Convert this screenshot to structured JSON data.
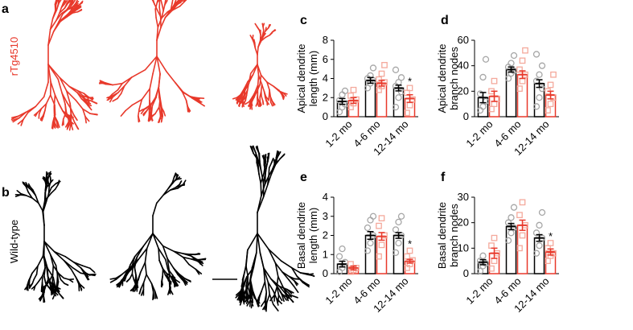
{
  "panel_labels": [
    "a",
    "b"
  ],
  "group_labels": [
    "rTg4510",
    "Wild-type"
  ],
  "chart_data": [
    {
      "type": "bar",
      "panel_label": "c",
      "y_label": [
        "Apical dendrite",
        "length (mm)"
      ],
      "categories": [
        "1-2 mo",
        "4-6 mo",
        "12-14 mo"
      ],
      "ylim": [
        0,
        8
      ],
      "yticks": [
        0,
        2,
        4,
        6,
        8
      ],
      "series": [
        {
          "color": "#000000",
          "point_color": "#a6a6a6",
          "marker": "circle",
          "values": [
            1.6,
            3.8,
            3.0
          ],
          "errors": [
            0.3,
            0.3,
            0.3
          ],
          "points": [
            [
              0.5,
              1.0,
              1.3,
              1.7,
              2.3,
              2.7
            ],
            [
              3.0,
              3.5,
              3.8,
              4.0,
              4.3,
              5.1
            ],
            [
              1.0,
              2.0,
              2.6,
              3.2,
              3.6,
              4.1,
              4.9
            ]
          ]
        },
        {
          "color": "#e8392b",
          "point_color": "#f4a99c",
          "marker": "square",
          "values": [
            1.7,
            3.5,
            1.9
          ],
          "errors": [
            0.3,
            0.3,
            0.4
          ],
          "points": [
            [
              1.0,
              1.4,
              1.8,
              2.2,
              2.8
            ],
            [
              2.8,
              3.2,
              3.6,
              3.9,
              4.5,
              5.4
            ],
            [
              0.4,
              1.2,
              1.8,
              2.5,
              3.0
            ]
          ]
        }
      ],
      "annotations": [
        {
          "text": "*",
          "category": "12-14 mo"
        }
      ]
    },
    {
      "type": "bar",
      "panel_label": "d",
      "y_label": [
        "Apical dendrite",
        "branch nodes"
      ],
      "categories": [
        "1-2 mo",
        "4-6 mo",
        "12-14 mo"
      ],
      "ylim": [
        0,
        60
      ],
      "yticks": [
        0,
        20,
        40,
        60
      ],
      "series": [
        {
          "color": "#000000",
          "point_color": "#a6a6a6",
          "marker": "circle",
          "values": [
            15,
            37,
            26
          ],
          "errors": [
            4,
            2,
            3
          ],
          "points": [
            [
              5,
              8,
              12,
              18,
              31,
              45
            ],
            [
              30,
              34,
              36,
              39,
              42,
              48
            ],
            [
              8,
              15,
              22,
              28,
              33,
              40,
              49
            ]
          ]
        },
        {
          "color": "#e8392b",
          "point_color": "#f4a99c",
          "marker": "square",
          "values": [
            16,
            33,
            17
          ],
          "errors": [
            4,
            3,
            3
          ],
          "points": [
            [
              6,
              10,
              14,
              20,
              28
            ],
            [
              22,
              28,
              33,
              37,
              44,
              52
            ],
            [
              5,
              10,
              15,
              20,
              25,
              33
            ]
          ]
        }
      ],
      "annotations": []
    },
    {
      "type": "bar",
      "panel_label": "e",
      "y_label": [
        "Basal dendrite",
        "length (mm)"
      ],
      "categories": [
        "1-2 mo",
        "4-6 mo",
        "12-14 mo"
      ],
      "ylim": [
        0,
        4
      ],
      "yticks": [
        0,
        1,
        2,
        3,
        4
      ],
      "series": [
        {
          "color": "#000000",
          "point_color": "#a6a6a6",
          "marker": "circle",
          "values": [
            0.5,
            2.0,
            2.0
          ],
          "errors": [
            0.15,
            0.2,
            0.15
          ],
          "points": [
            [
              0.1,
              0.3,
              0.6,
              0.9,
              1.3
            ],
            [
              1.2,
              1.6,
              2.0,
              2.4,
              2.8,
              3.0
            ],
            [
              1.1,
              1.6,
              2.0,
              2.3,
              2.7,
              3.0
            ]
          ]
        },
        {
          "color": "#e8392b",
          "point_color": "#f4a99c",
          "marker": "square",
          "values": [
            0.3,
            1.95,
            0.65
          ],
          "errors": [
            0.1,
            0.2,
            0.1
          ],
          "points": [
            [
              0.1,
              0.2,
              0.3,
              0.5
            ],
            [
              0.9,
              1.5,
              2.0,
              2.5,
              2.9
            ],
            [
              0.3,
              0.5,
              0.7,
              0.9,
              1.2
            ]
          ]
        }
      ],
      "annotations": [
        {
          "text": "*",
          "category": "12-14 mo"
        }
      ]
    },
    {
      "type": "bar",
      "panel_label": "f",
      "y_label": [
        "Basal dendrite",
        "branch nodes"
      ],
      "categories": [
        "1-2 mo",
        "4-6 mo",
        "12-14 mo"
      ],
      "ylim": [
        0,
        30
      ],
      "yticks": [
        0,
        10,
        20,
        30
      ],
      "series": [
        {
          "color": "#000000",
          "point_color": "#a6a6a6",
          "marker": "circle",
          "values": [
            4.5,
            18.5,
            14
          ],
          "errors": [
            1,
            1.2,
            1.3
          ],
          "points": [
            [
              1,
              3,
              4,
              5,
              7
            ],
            [
              13,
              16,
              18,
              20,
              22,
              26
            ],
            [
              8,
              11,
              14,
              16,
              19,
              24
            ]
          ]
        },
        {
          "color": "#e8392b",
          "point_color": "#f4a99c",
          "marker": "square",
          "values": [
            8,
            19,
            8.5
          ],
          "errors": [
            2,
            2,
            1.2
          ],
          "points": [
            [
              2,
              5,
              8,
              11,
              14
            ],
            [
              10,
              15,
              19,
              23,
              28
            ],
            [
              5,
              7,
              8,
              10,
              12
            ]
          ]
        }
      ],
      "annotations": [
        {
          "text": "*",
          "category": "12-14 mo"
        }
      ]
    }
  ]
}
